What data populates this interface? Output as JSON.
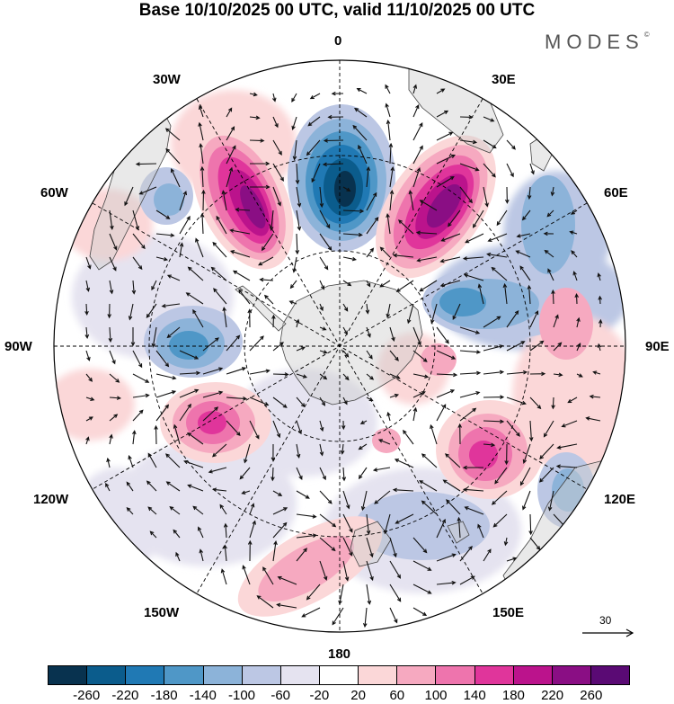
{
  "title": "Base 10/10/2025 00 UTC, valid 11/10/2025 00 UTC",
  "brand": "MODES",
  "brand_mark": "©",
  "longitude_labels": {
    "top": "0",
    "lon30e": "30E",
    "lon60e": "60E",
    "lon90e": "90E",
    "lon120e": "120E",
    "lon150e": "150E",
    "bottom": "180",
    "lon150w": "150W",
    "lon120w": "120W",
    "lon90w": "90W",
    "lon60w": "60W",
    "lon30w": "30W"
  },
  "reference_vector": {
    "label": "30"
  },
  "colorbar": {
    "colors": [
      "#08324f",
      "#0b5c8c",
      "#2079b4",
      "#4f97c7",
      "#8cb3d9",
      "#bcc7e4",
      "#e5e3f0",
      "#ffffff",
      "#fbd7d8",
      "#f6a9c0",
      "#ee74ad",
      "#e0359b",
      "#bb138c",
      "#8a0e84",
      "#5a0a74"
    ],
    "tick_labels": [
      "-260",
      "-220",
      "-180",
      "-140",
      "-100",
      "-60",
      "-20",
      "20",
      "60",
      "100",
      "140",
      "180",
      "220",
      "260"
    ]
  },
  "map": {
    "center": "South Pole",
    "anomalies": [
      {
        "name": "positive-anomaly-30w",
        "value": 240
      },
      {
        "name": "negative-anomaly-0",
        "value": -240
      },
      {
        "name": "positive-anomaly-30e",
        "value": 240
      },
      {
        "name": "negative-anomaly-70e",
        "value": -100
      },
      {
        "name": "positive-anomaly-100w",
        "value": 160
      },
      {
        "name": "negative-anomaly-85w",
        "value": -140
      },
      {
        "name": "positive-anomaly-120e",
        "value": 180
      },
      {
        "name": "negative-anomaly-150e",
        "value": -80
      },
      {
        "name": "positive-anomaly-170w",
        "value": 100
      },
      {
        "name": "negative-anomaly-45w",
        "value": -80
      },
      {
        "name": "positive-anomaly-100e",
        "value": 80
      }
    ]
  }
}
